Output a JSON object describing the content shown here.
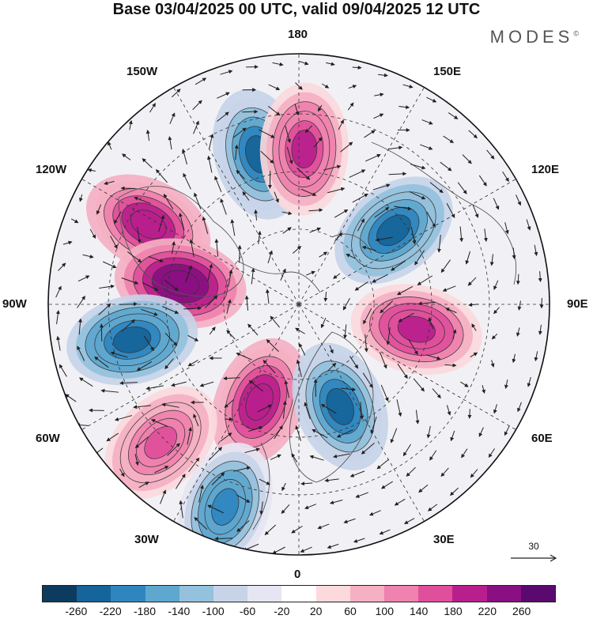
{
  "title": "Base 03/04/2025 00 UTC, valid 09/04/2025 12 UTC",
  "brand": "MODES",
  "brand_mark": "©",
  "longitude_labels": {
    "top": "180",
    "top_right": "150E",
    "right_upper": "120E",
    "right": "90E",
    "right_lower": "60E",
    "bottom_right": "30E",
    "bottom": "0",
    "bottom_left": "30W",
    "left_lower": "60W",
    "left": "90W",
    "left_upper": "120W",
    "top_left": "150W"
  },
  "reference_vector": {
    "label": "30"
  },
  "colorbar": {
    "colors": [
      "#0c3b5e",
      "#15649a",
      "#2f86bf",
      "#5ea7cf",
      "#94c1dc",
      "#c7d4e8",
      "#e6e6f2",
      "#ffffff",
      "#fbd9dc",
      "#f5b0c3",
      "#ef82ae",
      "#e04f9c",
      "#b91f8c",
      "#8a0f82",
      "#5a0a6e"
    ],
    "tick_labels": [
      "-260",
      "-220",
      "-180",
      "-140",
      "-100",
      "-60",
      "-20",
      "20",
      "60",
      "100",
      "140",
      "180",
      "220",
      "260"
    ]
  },
  "anomaly_centers": [
    {
      "sign": "negative",
      "lon": -165,
      "dist": 0.62,
      "value": -230
    },
    {
      "sign": "positive",
      "lon": 178,
      "dist": 0.62,
      "value": 190
    },
    {
      "sign": "positive",
      "lon": -118,
      "dist": 0.68,
      "value": 220
    },
    {
      "sign": "positive",
      "lon": -100,
      "dist": 0.48,
      "value": 260
    },
    {
      "sign": "negative",
      "lon": 128,
      "dist": 0.48,
      "value": -240
    },
    {
      "sign": "positive",
      "lon": 78,
      "dist": 0.48,
      "value": 200
    },
    {
      "sign": "negative",
      "lon": -78,
      "dist": 0.68,
      "value": -250
    },
    {
      "sign": "positive",
      "lon": -22,
      "dist": 0.42,
      "value": 210
    },
    {
      "sign": "negative",
      "lon": 22,
      "dist": 0.44,
      "value": -230
    },
    {
      "sign": "positive",
      "lon": -45,
      "dist": 0.78,
      "value": 150
    },
    {
      "sign": "negative",
      "lon": -20,
      "dist": 0.86,
      "value": -200
    }
  ]
}
